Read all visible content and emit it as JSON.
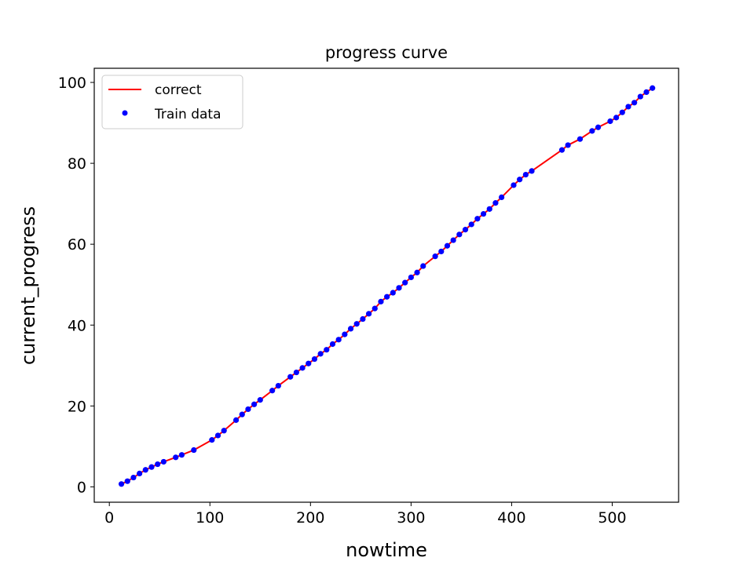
{
  "chart_data": {
    "type": "line",
    "title": "progress curve",
    "xlabel": "nowtime",
    "ylabel": "current_progress",
    "xlim": [
      -15,
      566
    ],
    "ylim": [
      -3.8,
      103.5
    ],
    "xticks": [
      0,
      100,
      200,
      300,
      400,
      500
    ],
    "yticks": [
      0,
      20,
      40,
      60,
      80,
      100
    ],
    "grid": false,
    "legend_position": "top-left",
    "series": [
      {
        "name": "correct",
        "style": "line",
        "color": "#ff0000",
        "x": [
          12,
          18,
          24,
          30,
          36,
          42,
          48,
          54,
          66,
          72,
          84,
          102,
          108,
          114,
          126,
          132,
          138,
          144,
          150,
          162,
          168,
          180,
          186,
          192,
          198,
          204,
          210,
          216,
          222,
          228,
          234,
          240,
          246,
          252,
          258,
          264,
          270,
          276,
          282,
          288,
          294,
          300,
          306,
          312,
          324,
          330,
          336,
          342,
          348,
          354,
          360,
          366,
          372,
          378,
          384,
          390,
          402,
          408,
          414,
          420,
          450,
          456,
          468,
          480,
          486,
          498,
          504,
          510,
          516,
          522,
          528,
          534,
          540
        ],
        "y": [
          0.7,
          1.4,
          2.3,
          3.3,
          4.2,
          4.9,
          5.6,
          6.2,
          7.3,
          7.9,
          9.1,
          11.6,
          12.7,
          13.9,
          16.5,
          17.9,
          19.2,
          20.4,
          21.5,
          23.8,
          25.0,
          27.2,
          28.3,
          29.4,
          30.5,
          31.6,
          32.9,
          33.9,
          35.3,
          36.4,
          37.7,
          39.1,
          40.3,
          41.5,
          42.8,
          44.1,
          45.8,
          47.0,
          48.0,
          49.2,
          50.5,
          51.8,
          53.0,
          54.6,
          57.0,
          58.2,
          59.6,
          61.0,
          62.4,
          63.6,
          64.9,
          66.3,
          67.5,
          68.7,
          70.2,
          71.6,
          74.6,
          76.0,
          77.2,
          78.1,
          83.3,
          84.5,
          86.0,
          88.0,
          88.9,
          90.4,
          91.3,
          92.6,
          94.0,
          95.0,
          96.5,
          97.6,
          98.6
        ]
      },
      {
        "name": "Train data",
        "style": "points",
        "color": "#0000ff",
        "x": [
          12,
          18,
          24,
          30,
          36,
          42,
          48,
          54,
          66,
          72,
          84,
          102,
          108,
          114,
          126,
          132,
          138,
          144,
          150,
          162,
          168,
          180,
          186,
          192,
          198,
          204,
          210,
          216,
          222,
          228,
          234,
          240,
          246,
          252,
          258,
          264,
          270,
          276,
          282,
          288,
          294,
          300,
          306,
          312,
          324,
          330,
          336,
          342,
          348,
          354,
          360,
          366,
          372,
          378,
          384,
          390,
          402,
          408,
          414,
          420,
          450,
          456,
          468,
          480,
          486,
          498,
          504,
          510,
          516,
          522,
          528,
          534,
          540
        ],
        "y": [
          0.7,
          1.4,
          2.3,
          3.3,
          4.2,
          4.9,
          5.6,
          6.2,
          7.3,
          7.9,
          9.1,
          11.6,
          12.7,
          13.9,
          16.5,
          17.9,
          19.2,
          20.4,
          21.5,
          23.8,
          25.0,
          27.2,
          28.3,
          29.4,
          30.5,
          31.6,
          32.9,
          33.9,
          35.3,
          36.4,
          37.7,
          39.1,
          40.3,
          41.5,
          42.8,
          44.1,
          45.8,
          47.0,
          48.0,
          49.2,
          50.5,
          51.8,
          53.0,
          54.6,
          57.0,
          58.2,
          59.6,
          61.0,
          62.4,
          63.6,
          64.9,
          66.3,
          67.5,
          68.7,
          70.2,
          71.6,
          74.6,
          76.0,
          77.2,
          78.1,
          83.3,
          84.5,
          86.0,
          88.0,
          88.9,
          90.4,
          91.3,
          92.6,
          94.0,
          95.0,
          96.5,
          97.6,
          98.6
        ]
      }
    ]
  }
}
